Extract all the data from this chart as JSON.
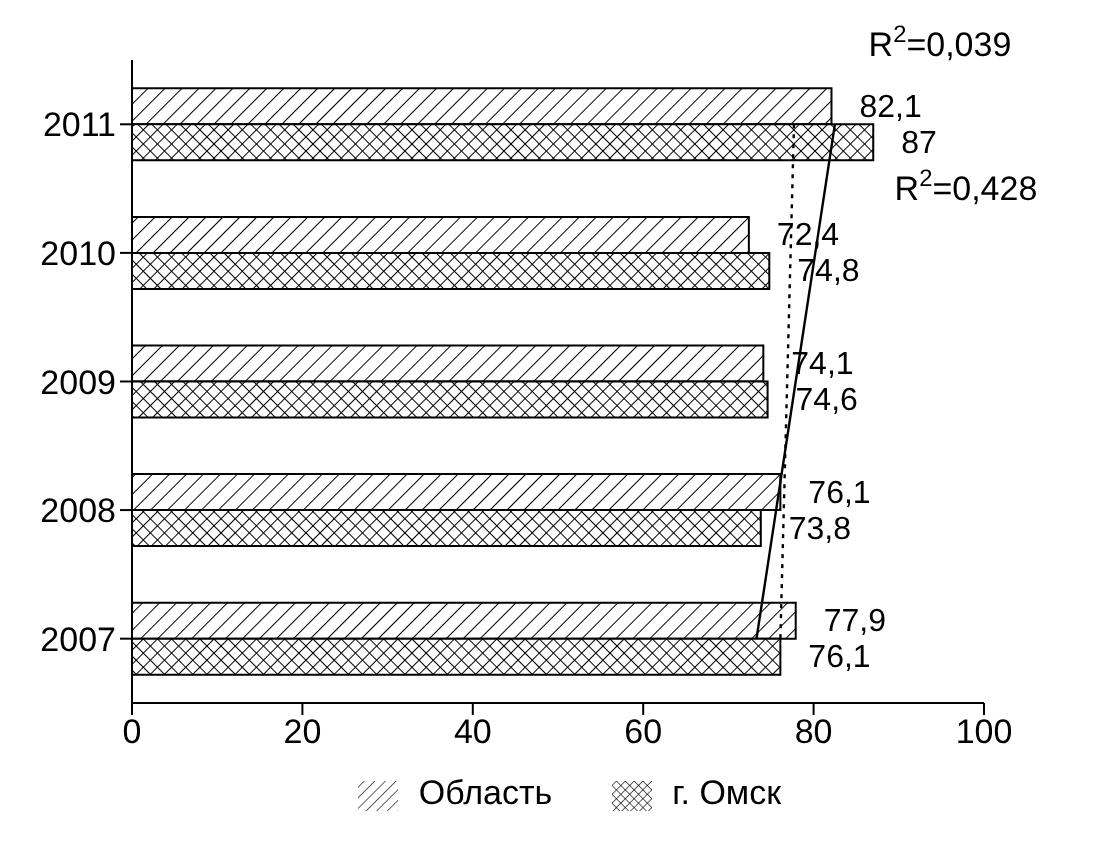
{
  "chart_data": {
    "type": "bar",
    "orientation": "horizontal",
    "categories": [
      "2011",
      "2010",
      "2009",
      "2008",
      "2007"
    ],
    "series": [
      {
        "name": "Область",
        "color": "#000000",
        "values": [
          82.1,
          72.4,
          74.1,
          76.1,
          77.9
        ],
        "value_labels": [
          "82,1",
          "72,4",
          "74,1",
          "76,1",
          "77,9"
        ]
      },
      {
        "name": "г. Омск",
        "color": "#000000",
        "values": [
          87,
          74.8,
          74.6,
          73.8,
          76.1
        ],
        "value_labels": [
          "87",
          "74,8",
          "74,6",
          "73,8",
          "76,1"
        ]
      },
      {
        "type": "line",
        "color": "#000000",
        "line_style": "dotted",
        "marker": "none",
        "values": [
          77.7,
          77.3,
          76.9,
          76.5,
          76.1
        ]
      },
      {
        "type": "line",
        "color": "#000000",
        "line_style": "solid",
        "marker": "none",
        "values": [
          82.5,
          80.2,
          77.9,
          75.6,
          73.3
        ]
      }
    ],
    "xlim": [
      0,
      100
    ],
    "xticks": [
      0,
      20,
      40,
      60,
      80,
      100
    ],
    "grid": false,
    "legend": "bottom",
    "annotations": [
      "R$^{2}$=0,039",
      "R$^{2}$=0,428"
    ]
  }
}
